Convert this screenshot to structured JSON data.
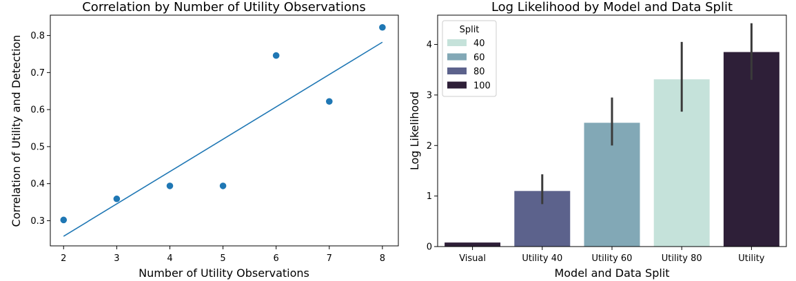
{
  "colors": {
    "scatter": "#1f77b4",
    "line": "#1f77b4",
    "error_bar": "#3a3a3a",
    "split_40": "#c5e2da",
    "split_60": "#82a8b6",
    "split_80": "#5c628c",
    "split_100": "#2e1f38"
  },
  "chart_data": [
    {
      "type": "scatter",
      "title": "Correlation by Number of Utility Observations",
      "xlabel": "Number of Utility Observations",
      "ylabel": "Correlation of Utility and Detection",
      "xlim": [
        1.75,
        8.3
      ],
      "ylim": [
        0.232,
        0.855
      ],
      "x_ticks": [
        2,
        3,
        4,
        5,
        6,
        7,
        8
      ],
      "y_ticks": [
        0.3,
        0.4,
        0.5,
        0.6,
        0.7,
        0.8
      ],
      "x_tick_labels": [
        "2",
        "3",
        "4",
        "5",
        "6",
        "7",
        "8"
      ],
      "y_tick_labels": [
        "0.3",
        "0.4",
        "0.5",
        "0.6",
        "0.7",
        "0.8"
      ],
      "points": [
        {
          "x": 2,
          "y": 0.302
        },
        {
          "x": 3,
          "y": 0.359
        },
        {
          "x": 4,
          "y": 0.394
        },
        {
          "x": 5,
          "y": 0.394
        },
        {
          "x": 6,
          "y": 0.746
        },
        {
          "x": 7,
          "y": 0.622
        },
        {
          "x": 8,
          "y": 0.822
        }
      ],
      "fit_line": {
        "x": [
          2,
          8
        ],
        "y": [
          0.258,
          0.782
        ]
      }
    },
    {
      "type": "bar",
      "title": "Log Likelihood by Model and Data Split",
      "xlabel": "Model and Data Split",
      "ylabel": "Log Likelihood",
      "ylim": [
        0,
        4.58
      ],
      "y_ticks": [
        0,
        1,
        2,
        3,
        4
      ],
      "y_tick_labels": [
        "0",
        "1",
        "2",
        "3",
        "4"
      ],
      "categories": [
        "Visual",
        "Utility 40",
        "Utility 60",
        "Utility 80",
        "Utility"
      ],
      "bars": [
        {
          "category": "Visual",
          "value": 0.08,
          "split": "100",
          "err": null
        },
        {
          "category": "Utility 40",
          "value": 1.1,
          "split": "80",
          "err": [
            0.84,
            1.43
          ]
        },
        {
          "category": "Utility 60",
          "value": 2.45,
          "split": "60",
          "err": [
            2.0,
            2.95
          ]
        },
        {
          "category": "Utility 80",
          "value": 3.31,
          "split": "40",
          "err": [
            2.67,
            4.05
          ]
        },
        {
          "category": "Utility",
          "value": 3.85,
          "split": "100",
          "err": [
            3.3,
            4.42
          ]
        }
      ],
      "legend": {
        "title": "Split",
        "placement": "top-left",
        "entries": [
          {
            "label": "40",
            "color_key": "split_40"
          },
          {
            "label": "60",
            "color_key": "split_60"
          },
          {
            "label": "80",
            "color_key": "split_80"
          },
          {
            "label": "100",
            "color_key": "split_100"
          }
        ]
      }
    }
  ]
}
